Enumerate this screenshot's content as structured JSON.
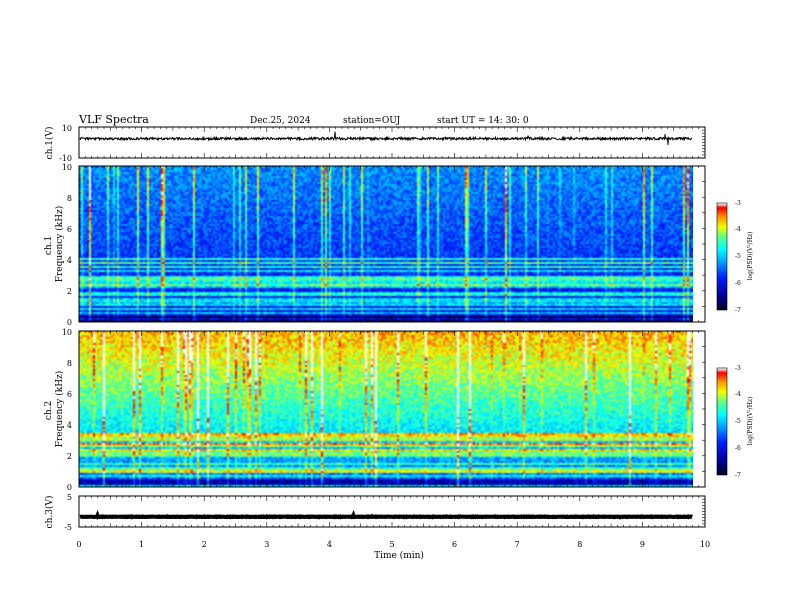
{
  "header": {
    "title": "VLF Spectra",
    "date": "Dec.25, 2024",
    "station": "station=OUJ",
    "start": "start  UT =   14: 30: 0"
  },
  "chart_data": [
    {
      "type": "line",
      "panel": "ch1-waveform",
      "ylabel": "ch.1(V)",
      "xlim": [
        0,
        10
      ],
      "data_xmax": 9.8,
      "ylim": [
        -10,
        10
      ],
      "yticks": [
        "10",
        "-10"
      ],
      "baseline": 2.5,
      "color": "#000000"
    },
    {
      "type": "heatmap",
      "panel": "ch1-spectrogram",
      "ylabel": "ch.1\nFrequency  (kHz)",
      "xlim": [
        0,
        10
      ],
      "data_xmax": 9.8,
      "ylim": [
        0,
        10
      ],
      "yticks": [
        "0",
        "2",
        "4",
        "6",
        "8",
        "10"
      ],
      "colorbar": {
        "label": "log(PSD)(V²/Hz)",
        "ticks": [
          "-3",
          "-4",
          "-5",
          "-6",
          "-7"
        ],
        "range": [
          -7,
          -3
        ]
      },
      "intensity": "low"
    },
    {
      "type": "heatmap",
      "panel": "ch2-spectrogram",
      "ylabel": "ch.2\nFrequency  (kHz)",
      "xlim": [
        0,
        10
      ],
      "data_xmax": 9.8,
      "ylim": [
        0,
        10
      ],
      "yticks": [
        "0",
        "2",
        "4",
        "6",
        "8",
        "10"
      ],
      "colorbar": {
        "label": "log(PSD)(V²/Hz)",
        "ticks": [
          "-3",
          "-4",
          "-5",
          "-6",
          "-7"
        ],
        "range": [
          -7,
          -3
        ]
      },
      "intensity": "high"
    },
    {
      "type": "line",
      "panel": "ch3-waveform",
      "ylabel": "ch.3(V)",
      "xlim": [
        0,
        10
      ],
      "data_xmax": 9.8,
      "ylim": [
        -5,
        5
      ],
      "yticks": [
        "5",
        "-5"
      ],
      "baseline": -1.7,
      "color": "#000000"
    }
  ],
  "xaxis": {
    "label": "Time  (min)",
    "ticks": [
      "0",
      "1",
      "2",
      "3",
      "4",
      "5",
      "6",
      "7",
      "8",
      "9",
      "10"
    ]
  },
  "colors": {
    "colormap": [
      "#00007f",
      "#0000ff",
      "#007fff",
      "#00ffff",
      "#7fff7f",
      "#ffff00",
      "#ff7f00",
      "#ff0000",
      "#ffffff"
    ]
  }
}
